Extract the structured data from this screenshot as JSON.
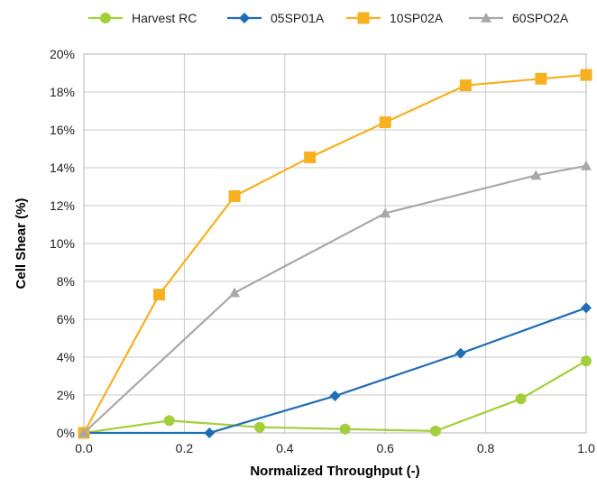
{
  "chart_data": {
    "type": "line",
    "title": "",
    "xlabel": "Normalized Throughput (-)",
    "ylabel": "Cell Shear (%)",
    "xlim": [
      0.0,
      1.0
    ],
    "ylim": [
      0,
      20
    ],
    "x_ticks": [
      "0.0",
      "0.2",
      "0.4",
      "0.6",
      "0.8",
      "1.0"
    ],
    "y_ticks": [
      "0%",
      "2%",
      "4%",
      "6%",
      "8%",
      "10%",
      "12%",
      "14%",
      "16%",
      "18%",
      "20%"
    ],
    "grid": "vertical-and-horizontal",
    "legend_position": "top",
    "series": [
      {
        "name": "Harvest RC",
        "color": "#a4cf3c",
        "marker": "circle",
        "x": [
          0.0,
          0.17,
          0.35,
          0.52,
          0.7,
          0.87,
          1.0
        ],
        "y": [
          0.0,
          0.65,
          0.3,
          0.2,
          0.1,
          1.8,
          3.8
        ]
      },
      {
        "name": "05SP01A",
        "color": "#1f6db5",
        "marker": "diamond",
        "x": [
          0.0,
          0.25,
          0.5,
          0.75,
          1.0
        ],
        "y": [
          0.0,
          0.0,
          1.95,
          4.2,
          6.6
        ]
      },
      {
        "name": "10SP02A",
        "color": "#f6b020",
        "marker": "square",
        "x": [
          0.0,
          0.15,
          0.3,
          0.45,
          0.6,
          0.76,
          0.91,
          1.0
        ],
        "y": [
          0.0,
          7.3,
          12.5,
          14.55,
          16.4,
          18.35,
          18.7,
          18.9
        ]
      },
      {
        "name": "60SPO2A",
        "color": "#a8a8a8",
        "marker": "triangle",
        "x": [
          0.0,
          0.3,
          0.6,
          0.9,
          1.0
        ],
        "y": [
          0.0,
          7.4,
          11.6,
          13.6,
          14.1
        ]
      }
    ]
  }
}
